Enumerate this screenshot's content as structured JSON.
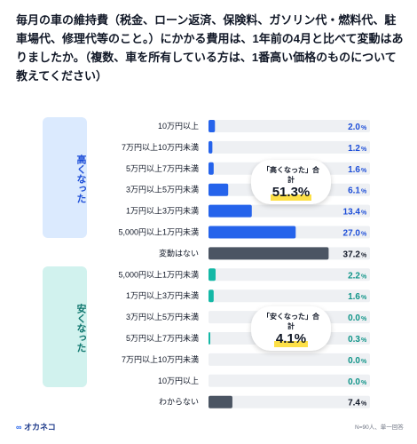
{
  "question": "毎月の車の維持費（税金、ローン返済、保険料、ガソリン代・燃料代、駐車場代、修理代等のこと。）にかかる費用は、1年前の4月と比べて変動はありましたか。（複数、車を所有している方は、1番高い価格のものについて教えてください）",
  "groups": {
    "high_label": "高くなった",
    "low_label": "安くなった"
  },
  "callouts": {
    "high_title": "「高くなった」合計",
    "high_value": "51.3%",
    "low_title": "「安くなった」合計",
    "low_value": "4.1%"
  },
  "footer": {
    "logo_mark": "∞",
    "logo_text": "オカネコ",
    "note": "N=90人、単一回答"
  },
  "colors": {
    "high": "#2563eb",
    "low": "#14b8a6",
    "neutral": "#4b5563",
    "track": "#eef0f3",
    "high_text": "#1d4ed8",
    "low_text": "#0f9488",
    "neutral_text": "#111827"
  },
  "chart_data": {
    "type": "bar",
    "orientation": "horizontal",
    "xlim": [
      0,
      50
    ],
    "categories": [
      "10万円以上",
      "7万円以上10万円未満",
      "5万円以上7万円未満",
      "3万円以上5万円未満",
      "1万円以上3万円未満",
      "5,000円以上1万円未満",
      "変動はない",
      "5,000円以上1万円未満",
      "1万円以上3万円未満",
      "3万円以上5万円未満",
      "5万円以上7万円未満",
      "7万円以上10万円未満",
      "10万円以上",
      "わからない"
    ],
    "values": [
      2.0,
      1.2,
      1.6,
      6.1,
      13.4,
      27.0,
      37.2,
      2.2,
      1.6,
      0.0,
      0.3,
      0.0,
      0.0,
      7.4
    ],
    "value_labels": [
      "2.0",
      "1.2",
      "1.6",
      "6.1",
      "13.4",
      "27.0",
      "37.2",
      "2.2",
      "1.6",
      "0.0",
      "0.3",
      "0.0",
      "0.0",
      "7.4"
    ],
    "unit": "%",
    "groups": [
      "high",
      "high",
      "high",
      "high",
      "high",
      "high",
      "neutral",
      "low",
      "low",
      "low",
      "low",
      "low",
      "low",
      "neutral"
    ]
  }
}
